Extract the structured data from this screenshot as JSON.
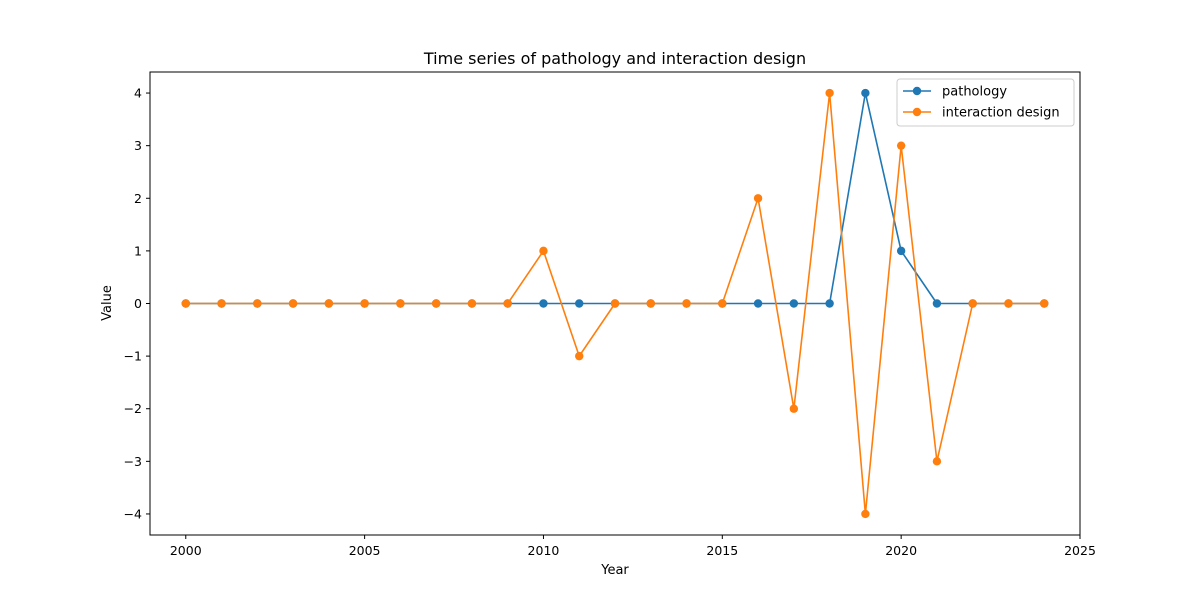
{
  "chart_data": {
    "type": "line",
    "title": "Time series of pathology and interaction design",
    "xlabel": "Year",
    "ylabel": "Value",
    "xlim": [
      1999,
      2025
    ],
    "ylim": [
      -4.4,
      4.4
    ],
    "xticks": [
      2000,
      2005,
      2010,
      2015,
      2020,
      2025
    ],
    "yticks": [
      -4,
      -3,
      -2,
      -1,
      0,
      1,
      2,
      3,
      4
    ],
    "yticklabels": [
      "−4",
      "−3",
      "−2",
      "−1",
      "0",
      "1",
      "2",
      "3",
      "4"
    ],
    "grid": false,
    "legend_position": "top-right",
    "x": [
      2000,
      2001,
      2002,
      2003,
      2004,
      2005,
      2006,
      2007,
      2008,
      2009,
      2010,
      2011,
      2012,
      2013,
      2014,
      2015,
      2016,
      2017,
      2018,
      2019,
      2020,
      2021,
      2022,
      2023,
      2024
    ],
    "series": [
      {
        "name": "pathology",
        "color": "#1f77b4",
        "values": [
          0,
          0,
          0,
          0,
          0,
          0,
          0,
          0,
          0,
          0,
          0,
          0,
          0,
          0,
          0,
          0,
          0,
          0,
          0,
          4,
          1,
          0,
          0,
          0,
          0
        ]
      },
      {
        "name": "interaction design",
        "color": "#ff7f0e",
        "values": [
          0,
          0,
          0,
          0,
          0,
          0,
          0,
          0,
          0,
          0,
          1,
          -1,
          0,
          0,
          0,
          0,
          2,
          -2,
          4,
          -4,
          3,
          -3,
          0,
          0,
          0
        ]
      }
    ]
  }
}
